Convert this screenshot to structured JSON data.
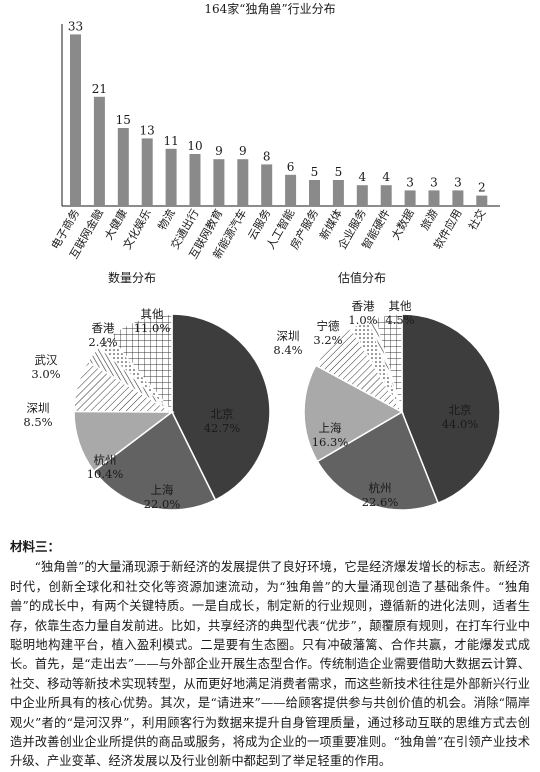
{
  "chart_data": [
    {
      "type": "bar",
      "title": "164家“独角兽”行业分布",
      "categories": [
        "电子商务",
        "互联网金融",
        "大健康",
        "文化娱乐",
        "物流",
        "交通出行",
        "互联网教育",
        "新能源汽车",
        "云服务",
        "人工智能",
        "房产服务",
        "新媒体",
        "企业服务",
        "智能硬件",
        "大数据",
        "旅游",
        "软件应用",
        "社交"
      ],
      "values": [
        33,
        21,
        15,
        13,
        11,
        10,
        9,
        9,
        8,
        6,
        5,
        5,
        4,
        4,
        3,
        3,
        3,
        2
      ],
      "ylim": [
        0,
        35
      ],
      "bar_color": "#8a8a8a"
    },
    {
      "type": "pie",
      "title": "数量分布",
      "slices": [
        {
          "label": "北京",
          "value": 42.7,
          "display": "42.7%",
          "fill": "#3d3d3d"
        },
        {
          "label": "上海",
          "value": 22.0,
          "display": "22.0%",
          "fill": "#626262"
        },
        {
          "label": "杭州",
          "value": 10.4,
          "display": "10.4%",
          "fill": "#a9a9a9"
        },
        {
          "label": "深圳",
          "value": 8.5,
          "display": "8.5%",
          "fill": "hatch"
        },
        {
          "label": "武汉",
          "value": 3.0,
          "display": "3.0%",
          "fill": "lines"
        },
        {
          "label": "香港",
          "value": 2.4,
          "display": "2.4%",
          "fill": "dots"
        },
        {
          "label": "其他",
          "value": 11.0,
          "display": "11.0%",
          "fill": "grid"
        }
      ]
    },
    {
      "type": "pie",
      "title": "估值分布",
      "slices": [
        {
          "label": "北京",
          "value": 44.0,
          "display": "44.0%",
          "fill": "#3d3d3d"
        },
        {
          "label": "杭州",
          "value": 22.6,
          "display": "22.6%",
          "fill": "#626262"
        },
        {
          "label": "上海",
          "value": 16.3,
          "display": "16.3%",
          "fill": "#a9a9a9"
        },
        {
          "label": "深圳",
          "value": 8.4,
          "display": "8.4%",
          "fill": "hatch"
        },
        {
          "label": "宁德",
          "value": 3.2,
          "display": "3.2%",
          "fill": "dots"
        },
        {
          "label": "香港",
          "value": 1.0,
          "display": "1.0%",
          "fill": "lines"
        },
        {
          "label": "其他",
          "value": 4.5,
          "display": "4.5%",
          "fill": "grid"
        }
      ]
    }
  ],
  "material": {
    "title": "材料三：",
    "paragraph": "“独角兽”的大量涌现源于新经济的发展提供了良好环境，它是经济爆发增长的标志。新经济时代，创新全球化和社交化等资源加速流动，为“独角兽”的大量涌现创造了基础条件。“独角兽”的成长中，有两个关键特质。一是自成长，制定新的行业规则，遵循新的进化法则，适者生存，依靠生态力量自发前进。比如，共享经济的典型代表“优步”，颠覆原有规则，在打车行业中聪明地构建平台，植入盈利模式。二是要有生态圈。只有冲破藩篱、合作共赢，才能爆发式成长。首先，是“走出去”——与外部企业开展生态型合作。传统制造企业需要借助大数据云计算、社交、移动等新技术实现转型，从而更好地满足消费者需求，而这些新技术往往是外部新兴行业中企业所具有的核心优势。其次，是“请进来”——给顾客提供参与共创价值的机会。消除“隔岸观火”者的“是河汉界”，利用顾客行为数据来提升自身管理质量，通过移动互联的思维方式去创造并改善创业企业所提供的商品或服务，将成为企业的一项重要准则。“独角兽”在引领产业技术升级、产业变革、经济发展以及行业创新中都起到了举足轻重的作用。"
  }
}
